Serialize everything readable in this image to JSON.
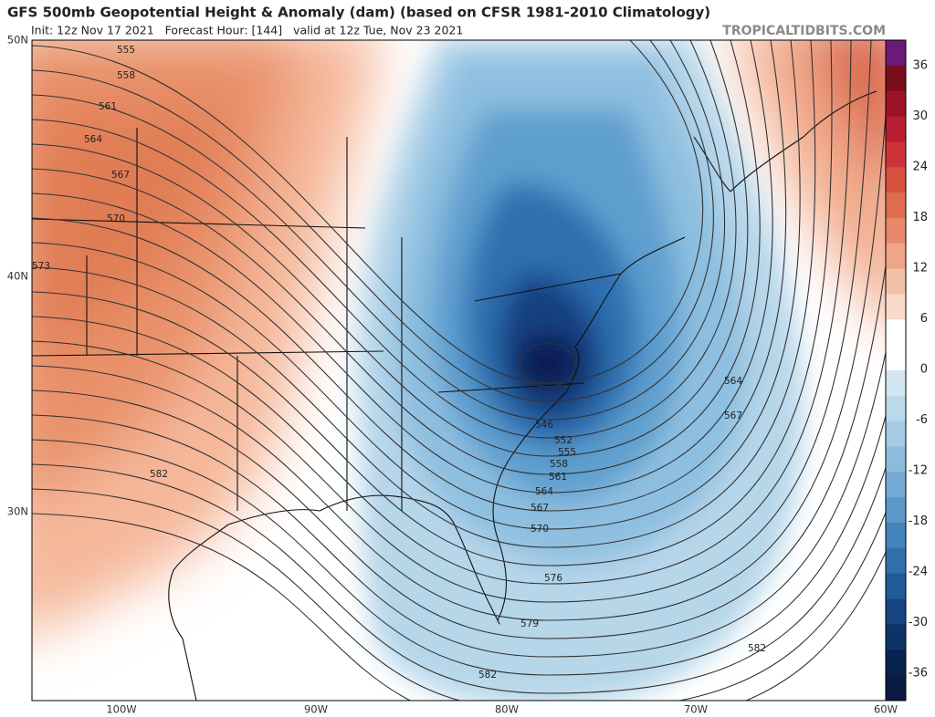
{
  "header": {
    "title": "GFS 500mb Geopotential Height & Anomaly (dam) (based on CFSR 1981-2010 Climatology)",
    "subtitle": "Init: 12z Nov 17 2021   Forecast Hour: [144]   valid at 12z Tue, Nov 23 2021",
    "watermark": "TROPICALTIDBITS.COM"
  },
  "axes": {
    "lat_labels": [
      "50N",
      "40N",
      "30N"
    ],
    "lon_labels": [
      "100W",
      "90W",
      "80W",
      "70W",
      "60W"
    ]
  },
  "colorbar": {
    "labels": [
      "36",
      "30",
      "24",
      "18",
      "12",
      "6",
      "0",
      "-6",
      "-12",
      "-18",
      "-24",
      "-30",
      "-36"
    ]
  },
  "contour_labels": [
    "555",
    "558",
    "561",
    "564",
    "567",
    "570",
    "573",
    "582",
    "546",
    "552",
    "555",
    "558",
    "561",
    "564",
    "567",
    "570",
    "576",
    "579",
    "582",
    "582",
    "564",
    "567"
  ]
}
